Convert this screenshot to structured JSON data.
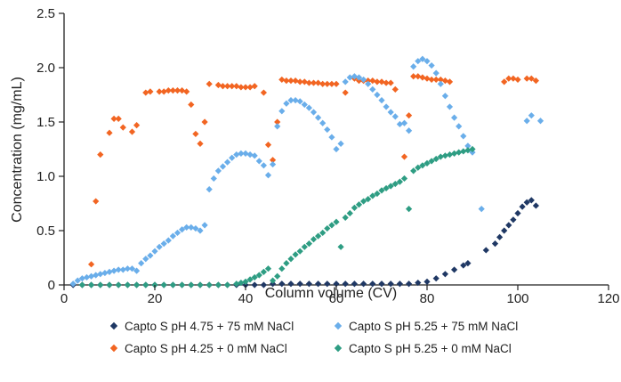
{
  "chart_data": {
    "type": "scatter",
    "xlabel": "Column volume (CV)",
    "ylabel": "Concentration (mg/mL)",
    "xlim": [
      0,
      120
    ],
    "ylim": [
      0,
      2.5
    ],
    "x_ticks": [
      "0",
      "20",
      "40",
      "60",
      "80",
      "100",
      "120"
    ],
    "y_ticks": [
      "0",
      "0.5",
      "1.0",
      "1.5",
      "2.0",
      "2.5"
    ],
    "grid": false,
    "legend_position": "bottom",
    "series": [
      {
        "name": "Capto S pH 4.75 + 75 mM NaCl",
        "color": "#1f3864",
        "points": [
          [
            2,
            0
          ],
          [
            4,
            0
          ],
          [
            6,
            0
          ],
          [
            8,
            0
          ],
          [
            10,
            0
          ],
          [
            12,
            0
          ],
          [
            14,
            0
          ],
          [
            16,
            0
          ],
          [
            18,
            0
          ],
          [
            20,
            0
          ],
          [
            22,
            0
          ],
          [
            24,
            0
          ],
          [
            26,
            0
          ],
          [
            28,
            0
          ],
          [
            30,
            0
          ],
          [
            32,
            0
          ],
          [
            34,
            0
          ],
          [
            36,
            0
          ],
          [
            38,
            0
          ],
          [
            40,
            0
          ],
          [
            42,
            0
          ],
          [
            44,
            0
          ],
          [
            46,
            0.01
          ],
          [
            48,
            0.01
          ],
          [
            50,
            0.01
          ],
          [
            52,
            0.01
          ],
          [
            54,
            0.01
          ],
          [
            56,
            0.01
          ],
          [
            58,
            0.01
          ],
          [
            60,
            0.01
          ],
          [
            62,
            0.01
          ],
          [
            64,
            0.01
          ],
          [
            66,
            0.01
          ],
          [
            68,
            0.01
          ],
          [
            70,
            0.01
          ],
          [
            72,
            0.01
          ],
          [
            74,
            0.01
          ],
          [
            76,
            0.01
          ],
          [
            78,
            0.02
          ],
          [
            80,
            0.03
          ],
          [
            82,
            0.06
          ],
          [
            84,
            0.1
          ],
          [
            86,
            0.14
          ],
          [
            88,
            0.18
          ],
          [
            89,
            0.2
          ],
          [
            93,
            0.32
          ],
          [
            95,
            0.38
          ],
          [
            96,
            0.44
          ],
          [
            97,
            0.5
          ],
          [
            98,
            0.55
          ],
          [
            99,
            0.6
          ],
          [
            100,
            0.66
          ],
          [
            101,
            0.72
          ],
          [
            102,
            0.76
          ],
          [
            103,
            0.78
          ],
          [
            104,
            0.73
          ]
        ]
      },
      {
        "name": "Capto S pH 4.25 + 0 mM NaCl",
        "color": "#f26522",
        "points": [
          [
            6,
            0.19
          ],
          [
            7,
            0.77
          ],
          [
            8,
            1.2
          ],
          [
            10,
            1.4
          ],
          [
            11,
            1.53
          ],
          [
            12,
            1.53
          ],
          [
            13,
            1.45
          ],
          [
            15,
            1.41
          ],
          [
            16,
            1.47
          ],
          [
            18,
            1.77
          ],
          [
            19,
            1.78
          ],
          [
            21,
            1.78
          ],
          [
            22,
            1.78
          ],
          [
            23,
            1.79
          ],
          [
            24,
            1.79
          ],
          [
            25,
            1.79
          ],
          [
            26,
            1.79
          ],
          [
            27,
            1.78
          ],
          [
            28,
            1.66
          ],
          [
            29,
            1.39
          ],
          [
            30,
            1.3
          ],
          [
            31,
            1.5
          ],
          [
            32,
            1.85
          ],
          [
            34,
            1.84
          ],
          [
            35,
            1.83
          ],
          [
            36,
            1.83
          ],
          [
            37,
            1.83
          ],
          [
            38,
            1.83
          ],
          [
            39,
            1.82
          ],
          [
            40,
            1.82
          ],
          [
            41,
            1.82
          ],
          [
            42,
            1.83
          ],
          [
            44,
            1.77
          ],
          [
            45,
            1.29
          ],
          [
            46,
            1.15
          ],
          [
            47,
            1.5
          ],
          [
            48,
            1.89
          ],
          [
            49,
            1.88
          ],
          [
            50,
            1.88
          ],
          [
            51,
            1.88
          ],
          [
            52,
            1.87
          ],
          [
            53,
            1.87
          ],
          [
            54,
            1.86
          ],
          [
            55,
            1.86
          ],
          [
            56,
            1.86
          ],
          [
            57,
            1.85
          ],
          [
            58,
            1.85
          ],
          [
            59,
            1.85
          ],
          [
            60,
            1.85
          ],
          [
            62,
            1.77
          ],
          [
            64,
            1.9
          ],
          [
            65,
            1.88
          ],
          [
            66,
            1.88
          ],
          [
            67,
            1.88
          ],
          [
            68,
            1.88
          ],
          [
            69,
            1.87
          ],
          [
            70,
            1.87
          ],
          [
            71,
            1.86
          ],
          [
            72,
            1.86
          ],
          [
            73,
            1.8
          ],
          [
            75,
            1.18
          ],
          [
            76,
            1.56
          ],
          [
            77,
            1.92
          ],
          [
            78,
            1.92
          ],
          [
            79,
            1.91
          ],
          [
            80,
            1.9
          ],
          [
            81,
            1.89
          ],
          [
            82,
            1.89
          ],
          [
            83,
            1.89
          ],
          [
            84,
            1.88
          ],
          [
            85,
            1.87
          ],
          [
            97,
            1.87
          ],
          [
            98,
            1.9
          ],
          [
            99,
            1.9
          ],
          [
            100,
            1.89
          ],
          [
            102,
            1.9
          ],
          [
            103,
            1.9
          ],
          [
            104,
            1.88
          ]
        ]
      },
      {
        "name": "Capto S pH 5.25 + 75 mM NaCl",
        "color": "#6aaeea",
        "points": [
          [
            2,
            0.01
          ],
          [
            3,
            0.04
          ],
          [
            4,
            0.06
          ],
          [
            5,
            0.07
          ],
          [
            6,
            0.08
          ],
          [
            7,
            0.09
          ],
          [
            8,
            0.1
          ],
          [
            9,
            0.11
          ],
          [
            10,
            0.12
          ],
          [
            11,
            0.13
          ],
          [
            12,
            0.14
          ],
          [
            13,
            0.14
          ],
          [
            14,
            0.15
          ],
          [
            15,
            0.15
          ],
          [
            16,
            0.13
          ],
          [
            17,
            0.2
          ],
          [
            18,
            0.24
          ],
          [
            19,
            0.27
          ],
          [
            20,
            0.31
          ],
          [
            21,
            0.35
          ],
          [
            22,
            0.38
          ],
          [
            23,
            0.41
          ],
          [
            24,
            0.45
          ],
          [
            25,
            0.48
          ],
          [
            26,
            0.51
          ],
          [
            27,
            0.53
          ],
          [
            28,
            0.53
          ],
          [
            29,
            0.52
          ],
          [
            30,
            0.5
          ],
          [
            31,
            0.55
          ],
          [
            32,
            0.88
          ],
          [
            33,
            0.98
          ],
          [
            34,
            1.05
          ],
          [
            35,
            1.09
          ],
          [
            36,
            1.13
          ],
          [
            37,
            1.17
          ],
          [
            38,
            1.2
          ],
          [
            39,
            1.21
          ],
          [
            40,
            1.21
          ],
          [
            41,
            1.2
          ],
          [
            42,
            1.19
          ],
          [
            43,
            1.14
          ],
          [
            44,
            1.1
          ],
          [
            45,
            1.01
          ],
          [
            46,
            1.11
          ],
          [
            47,
            1.46
          ],
          [
            48,
            1.6
          ],
          [
            49,
            1.67
          ],
          [
            50,
            1.7
          ],
          [
            51,
            1.7
          ],
          [
            52,
            1.69
          ],
          [
            53,
            1.66
          ],
          [
            54,
            1.63
          ],
          [
            55,
            1.59
          ],
          [
            56,
            1.54
          ],
          [
            57,
            1.49
          ],
          [
            58,
            1.43
          ],
          [
            59,
            1.36
          ],
          [
            60,
            1.25
          ],
          [
            61,
            1.3
          ],
          [
            62,
            1.87
          ],
          [
            63,
            1.91
          ],
          [
            64,
            1.92
          ],
          [
            65,
            1.91
          ],
          [
            66,
            1.89
          ],
          [
            67,
            1.85
          ],
          [
            68,
            1.8
          ],
          [
            69,
            1.75
          ],
          [
            70,
            1.7
          ],
          [
            71,
            1.64
          ],
          [
            72,
            1.59
          ],
          [
            73,
            1.55
          ],
          [
            74,
            1.48
          ],
          [
            75,
            1.49
          ],
          [
            76,
            1.42
          ],
          [
            77,
            2.01
          ],
          [
            78,
            2.06
          ],
          [
            79,
            2.08
          ],
          [
            80,
            2.06
          ],
          [
            81,
            2.02
          ],
          [
            82,
            1.95
          ],
          [
            83,
            1.85
          ],
          [
            84,
            1.74
          ],
          [
            85,
            1.64
          ],
          [
            86,
            1.54
          ],
          [
            87,
            1.46
          ],
          [
            88,
            1.37
          ],
          [
            89,
            1.28
          ],
          [
            90,
            1.22
          ],
          [
            92,
            0.7
          ],
          [
            102,
            1.51
          ],
          [
            103,
            1.56
          ],
          [
            105,
            1.51
          ]
        ]
      },
      {
        "name": "Capto S pH 5.25 + 0 mM NaCl",
        "color": "#2e9d83",
        "points": [
          [
            4,
            0
          ],
          [
            6,
            0
          ],
          [
            8,
            0
          ],
          [
            10,
            0
          ],
          [
            12,
            0
          ],
          [
            14,
            0
          ],
          [
            16,
            0
          ],
          [
            18,
            0
          ],
          [
            20,
            0
          ],
          [
            22,
            0
          ],
          [
            24,
            0
          ],
          [
            26,
            0
          ],
          [
            28,
            0
          ],
          [
            30,
            0
          ],
          [
            32,
            0
          ],
          [
            34,
            0
          ],
          [
            36,
            0
          ],
          [
            38,
            0.01
          ],
          [
            39,
            0.02
          ],
          [
            40,
            0.03
          ],
          [
            41,
            0.05
          ],
          [
            42,
            0.07
          ],
          [
            43,
            0.09
          ],
          [
            44,
            0.12
          ],
          [
            45,
            0.15
          ],
          [
            46,
            0.04
          ],
          [
            47,
            0.08
          ],
          [
            48,
            0.15
          ],
          [
            49,
            0.2
          ],
          [
            50,
            0.24
          ],
          [
            51,
            0.28
          ],
          [
            52,
            0.31
          ],
          [
            53,
            0.35
          ],
          [
            54,
            0.38
          ],
          [
            55,
            0.42
          ],
          [
            56,
            0.45
          ],
          [
            57,
            0.48
          ],
          [
            58,
            0.52
          ],
          [
            59,
            0.55
          ],
          [
            60,
            0.58
          ],
          [
            61,
            0.35
          ],
          [
            62,
            0.62
          ],
          [
            63,
            0.66
          ],
          [
            64,
            0.71
          ],
          [
            65,
            0.74
          ],
          [
            66,
            0.77
          ],
          [
            67,
            0.79
          ],
          [
            68,
            0.82
          ],
          [
            69,
            0.84
          ],
          [
            70,
            0.87
          ],
          [
            71,
            0.89
          ],
          [
            72,
            0.91
          ],
          [
            73,
            0.93
          ],
          [
            74,
            0.95
          ],
          [
            75,
            0.98
          ],
          [
            76,
            0.7
          ],
          [
            77,
            1.05
          ],
          [
            78,
            1.08
          ],
          [
            79,
            1.1
          ],
          [
            80,
            1.12
          ],
          [
            81,
            1.14
          ],
          [
            82,
            1.16
          ],
          [
            83,
            1.18
          ],
          [
            84,
            1.19
          ],
          [
            85,
            1.2
          ],
          [
            86,
            1.21
          ],
          [
            87,
            1.22
          ],
          [
            88,
            1.23
          ],
          [
            89,
            1.24
          ],
          [
            90,
            1.25
          ]
        ]
      }
    ]
  }
}
